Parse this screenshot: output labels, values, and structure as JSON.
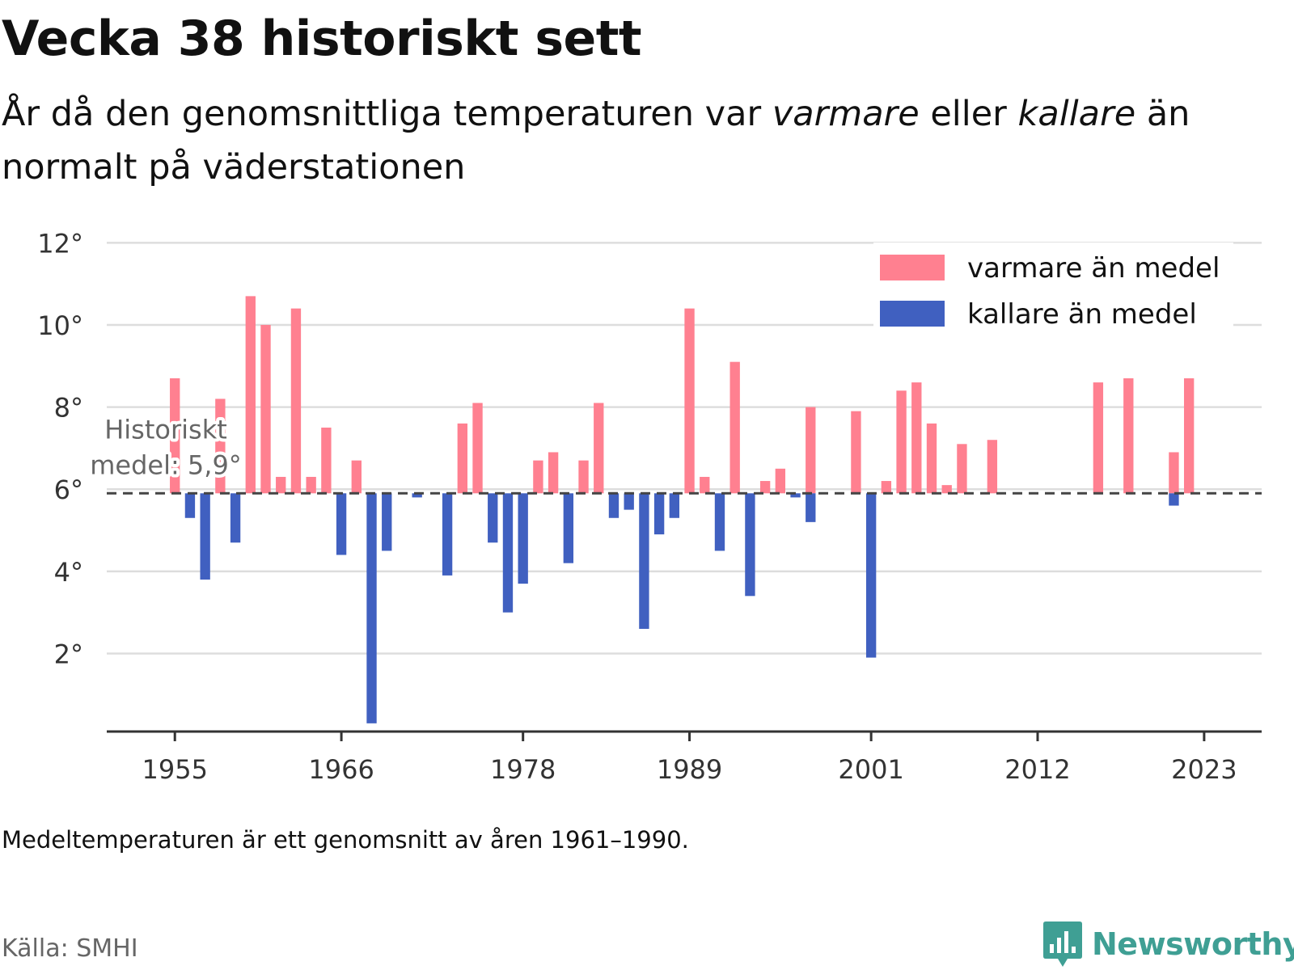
{
  "title": "Vecka 38 historiskt sett",
  "subtitle": {
    "part1": "År då den genomsnittliga temperaturen var ",
    "warm": "varmare",
    "part2": " eller ",
    "cold": "kallare",
    "part3": " än normalt på väderstationen"
  },
  "footnote": "Medeltemperaturen är ett genomsnitt av åren 1961–1990.",
  "source": "Källa: SMHI",
  "brand": "Newsworthy",
  "colors": {
    "warm": "#ff8090",
    "cold": "#4060c0",
    "grid": "#dddddd",
    "axis": "#333333",
    "brand": "#3f9f94"
  },
  "chart_data": {
    "type": "bar",
    "baseline": 5.9,
    "baseline_label": [
      "Historiskt",
      "medel: 5,9°"
    ],
    "ylim": [
      0.1,
      12.4
    ],
    "yticks": [
      2,
      4,
      6,
      8,
      10,
      12
    ],
    "ytick_labels": [
      "2°",
      "4°",
      "6°",
      "8°",
      "10°",
      "12°"
    ],
    "xlim": [
      1950.5,
      2026.8
    ],
    "xticks": [
      1955,
      1966,
      1978,
      1989,
      2001,
      2012,
      2023
    ],
    "xtick_labels": [
      "1955",
      "1966",
      "1978",
      "1989",
      "2001",
      "2012",
      "2023"
    ],
    "legend": {
      "position": "top-right",
      "entries": [
        "varmare än medel",
        "kallare än medel"
      ]
    },
    "grid": true,
    "series": [
      {
        "name": "varmare än medel",
        "color": "#ff8090",
        "x": [
          1955,
          1958,
          1960,
          1961,
          1962,
          1963,
          1964,
          1965,
          1967,
          1974,
          1975,
          1979,
          1980,
          1982,
          1983,
          1989,
          1990,
          1992,
          1994,
          1995,
          1997,
          2000,
          2002,
          2003,
          2004,
          2005,
          2006,
          2007,
          2009,
          2016,
          2018,
          2021,
          2022
        ],
        "values": [
          8.7,
          8.2,
          10.7,
          10.0,
          6.3,
          10.4,
          6.3,
          7.5,
          6.7,
          7.6,
          8.1,
          6.7,
          6.9,
          6.7,
          8.1,
          10.4,
          6.3,
          9.1,
          6.2,
          6.5,
          8.0,
          7.9,
          6.2,
          8.4,
          8.6,
          7.6,
          6.1,
          7.1,
          7.2,
          8.6,
          8.7,
          6.9,
          8.7
        ]
      },
      {
        "name": "kallare än medel",
        "color": "#4060c0",
        "x": [
          1956,
          1957,
          1959,
          1966,
          1968,
          1969,
          1971,
          1973,
          1976,
          1977,
          1978,
          1981,
          1984,
          1985,
          1986,
          1987,
          1988,
          1991,
          1993,
          1996,
          1997,
          2001,
          2021
        ],
        "values": [
          5.3,
          3.8,
          4.7,
          4.4,
          0.3,
          4.5,
          5.8,
          3.9,
          4.7,
          3.0,
          3.7,
          4.2,
          5.3,
          5.5,
          2.6,
          4.9,
          5.3,
          4.5,
          3.4,
          5.8,
          5.2,
          1.9,
          5.6
        ]
      }
    ]
  }
}
